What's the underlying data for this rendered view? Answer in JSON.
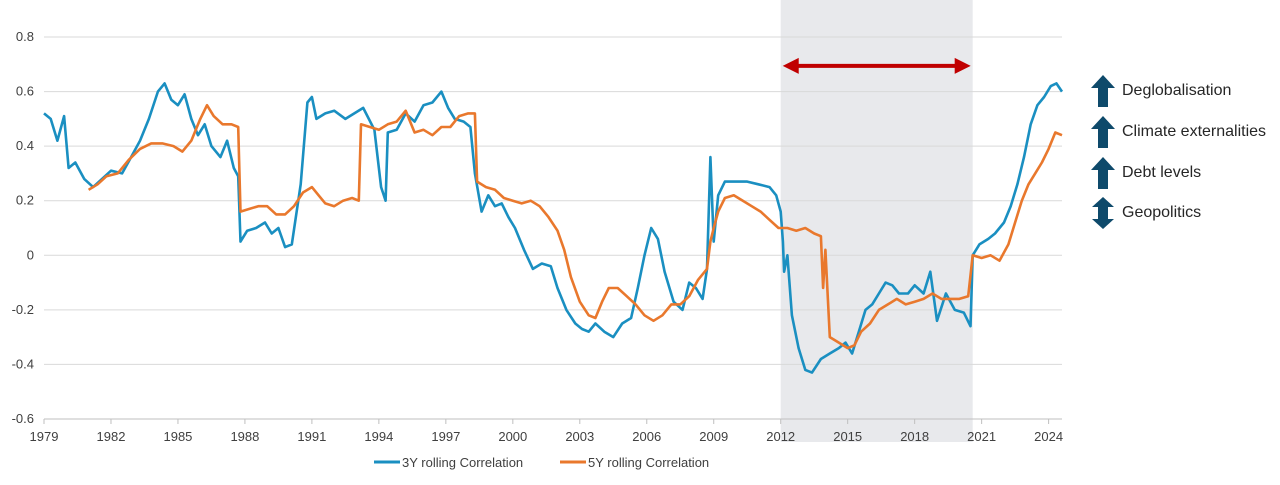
{
  "chart_data": {
    "type": "line",
    "title": "",
    "xlabel": "",
    "ylabel": "",
    "xlim": [
      1979.0,
      2024.6
    ],
    "ylim": [
      -0.6,
      0.8
    ],
    "yticks": [
      -0.6,
      -0.4,
      -0.2,
      0,
      0.2,
      0.4,
      0.6,
      0.8
    ],
    "ytick_labels": [
      "-0.6",
      "-0.4",
      "-0.2",
      "0",
      "0.2",
      "0.4",
      "0.6",
      "0.8"
    ],
    "xticks": [
      1979,
      1982,
      1985,
      1988,
      1991,
      1994,
      1997,
      2000,
      2003,
      2006,
      2009,
      2012,
      2015,
      2018,
      2021,
      2024
    ],
    "xtick_labels": [
      "1979",
      "1982",
      "1985",
      "1988",
      "1991",
      "1994",
      "1997",
      "2000",
      "2003",
      "2006",
      "2009",
      "2012",
      "2015",
      "2018",
      "2021",
      "2024"
    ],
    "grid": "horizontal",
    "legend_position": "bottom",
    "shaded_region": {
      "x": [
        2012.0,
        2020.6
      ],
      "color": "#e8e9ec"
    },
    "arrow": {
      "x": [
        2012.0,
        2020.6
      ],
      "y": 0.72,
      "color": "#c00000",
      "style": "double-headed"
    },
    "series": [
      {
        "name": "3Y rolling Correlation",
        "color": "#1a8fc1",
        "points": [
          [
            1979.0,
            0.52
          ],
          [
            1979.3,
            0.5
          ],
          [
            1979.6,
            0.42
          ],
          [
            1979.9,
            0.51
          ],
          [
            1980.1,
            0.32
          ],
          [
            1980.4,
            0.34
          ],
          [
            1980.8,
            0.28
          ],
          [
            1981.2,
            0.25
          ],
          [
            1981.6,
            0.28
          ],
          [
            1982.0,
            0.31
          ],
          [
            1982.5,
            0.3
          ],
          [
            1982.9,
            0.36
          ],
          [
            1983.3,
            0.42
          ],
          [
            1983.7,
            0.5
          ],
          [
            1984.1,
            0.6
          ],
          [
            1984.4,
            0.63
          ],
          [
            1984.7,
            0.57
          ],
          [
            1985.0,
            0.55
          ],
          [
            1985.3,
            0.59
          ],
          [
            1985.6,
            0.5
          ],
          [
            1985.9,
            0.44
          ],
          [
            1986.2,
            0.48
          ],
          [
            1986.5,
            0.4
          ],
          [
            1986.9,
            0.36
          ],
          [
            1987.2,
            0.42
          ],
          [
            1987.5,
            0.32
          ],
          [
            1987.7,
            0.29
          ],
          [
            1987.8,
            0.05
          ],
          [
            1988.1,
            0.09
          ],
          [
            1988.5,
            0.1
          ],
          [
            1988.9,
            0.12
          ],
          [
            1989.2,
            0.08
          ],
          [
            1989.5,
            0.1
          ],
          [
            1989.8,
            0.03
          ],
          [
            1990.1,
            0.04
          ],
          [
            1990.5,
            0.26
          ],
          [
            1990.8,
            0.56
          ],
          [
            1991.0,
            0.58
          ],
          [
            1991.2,
            0.5
          ],
          [
            1991.6,
            0.52
          ],
          [
            1992.0,
            0.53
          ],
          [
            1992.5,
            0.5
          ],
          [
            1992.9,
            0.52
          ],
          [
            1993.3,
            0.54
          ],
          [
            1993.8,
            0.46
          ],
          [
            1994.1,
            0.25
          ],
          [
            1994.3,
            0.2
          ],
          [
            1994.4,
            0.45
          ],
          [
            1994.8,
            0.46
          ],
          [
            1995.2,
            0.52
          ],
          [
            1995.6,
            0.49
          ],
          [
            1996.0,
            0.55
          ],
          [
            1996.4,
            0.56
          ],
          [
            1996.8,
            0.6
          ],
          [
            1997.1,
            0.54
          ],
          [
            1997.4,
            0.5
          ],
          [
            1997.8,
            0.49
          ],
          [
            1998.1,
            0.47
          ],
          [
            1998.3,
            0.3
          ],
          [
            1998.6,
            0.16
          ],
          [
            1998.9,
            0.22
          ],
          [
            1999.2,
            0.18
          ],
          [
            1999.5,
            0.19
          ],
          [
            1999.8,
            0.14
          ],
          [
            2000.1,
            0.1
          ],
          [
            2000.5,
            0.02
          ],
          [
            2000.9,
            -0.05
          ],
          [
            2001.3,
            -0.03
          ],
          [
            2001.7,
            -0.04
          ],
          [
            2002.0,
            -0.12
          ],
          [
            2002.4,
            -0.2
          ],
          [
            2002.8,
            -0.25
          ],
          [
            2003.1,
            -0.27
          ],
          [
            2003.4,
            -0.28
          ],
          [
            2003.7,
            -0.25
          ],
          [
            2004.1,
            -0.28
          ],
          [
            2004.5,
            -0.3
          ],
          [
            2004.9,
            -0.25
          ],
          [
            2005.3,
            -0.23
          ],
          [
            2005.6,
            -0.12
          ],
          [
            2005.9,
            0.0
          ],
          [
            2006.2,
            0.1
          ],
          [
            2006.5,
            0.06
          ],
          [
            2006.8,
            -0.06
          ],
          [
            2007.2,
            -0.17
          ],
          [
            2007.6,
            -0.2
          ],
          [
            2007.9,
            -0.1
          ],
          [
            2008.2,
            -0.12
          ],
          [
            2008.5,
            -0.16
          ],
          [
            2008.7,
            -0.05
          ],
          [
            2008.85,
            0.36
          ],
          [
            2009.0,
            0.05
          ],
          [
            2009.2,
            0.22
          ],
          [
            2009.5,
            0.27
          ],
          [
            2010.0,
            0.27
          ],
          [
            2010.5,
            0.27
          ],
          [
            2011.0,
            0.26
          ],
          [
            2011.5,
            0.25
          ],
          [
            2011.8,
            0.22
          ],
          [
            2012.0,
            0.16
          ],
          [
            2012.1,
            0.05
          ],
          [
            2012.15,
            -0.06
          ],
          [
            2012.3,
            0.0
          ],
          [
            2012.5,
            -0.22
          ],
          [
            2012.8,
            -0.34
          ],
          [
            2013.1,
            -0.42
          ],
          [
            2013.4,
            -0.43
          ],
          [
            2013.8,
            -0.38
          ],
          [
            2014.2,
            -0.36
          ],
          [
            2014.6,
            -0.34
          ],
          [
            2014.9,
            -0.32
          ],
          [
            2015.2,
            -0.36
          ],
          [
            2015.5,
            -0.28
          ],
          [
            2015.8,
            -0.2
          ],
          [
            2016.1,
            -0.18
          ],
          [
            2016.4,
            -0.14
          ],
          [
            2016.7,
            -0.1
          ],
          [
            2017.0,
            -0.11
          ],
          [
            2017.3,
            -0.14
          ],
          [
            2017.7,
            -0.14
          ],
          [
            2018.0,
            -0.11
          ],
          [
            2018.4,
            -0.14
          ],
          [
            2018.7,
            -0.06
          ],
          [
            2019.0,
            -0.24
          ],
          [
            2019.4,
            -0.14
          ],
          [
            2019.8,
            -0.2
          ],
          [
            2020.2,
            -0.21
          ],
          [
            2020.5,
            -0.26
          ],
          [
            2020.6,
            0.0
          ],
          [
            2020.9,
            0.04
          ],
          [
            2021.3,
            0.06
          ],
          [
            2021.6,
            0.08
          ],
          [
            2022.0,
            0.12
          ],
          [
            2022.3,
            0.18
          ],
          [
            2022.6,
            0.26
          ],
          [
            2022.9,
            0.36
          ],
          [
            2023.2,
            0.48
          ],
          [
            2023.5,
            0.55
          ],
          [
            2023.8,
            0.58
          ],
          [
            2024.1,
            0.62
          ],
          [
            2024.35,
            0.63
          ],
          [
            2024.6,
            0.6
          ]
        ]
      },
      {
        "name": "5Y rolling Correlation",
        "color": "#e9782d",
        "points": [
          [
            1981.0,
            0.24
          ],
          [
            1981.4,
            0.26
          ],
          [
            1981.8,
            0.29
          ],
          [
            1982.3,
            0.3
          ],
          [
            1982.8,
            0.35
          ],
          [
            1983.3,
            0.39
          ],
          [
            1983.8,
            0.41
          ],
          [
            1984.3,
            0.41
          ],
          [
            1984.8,
            0.4
          ],
          [
            1985.2,
            0.38
          ],
          [
            1985.6,
            0.42
          ],
          [
            1986.0,
            0.5
          ],
          [
            1986.3,
            0.55
          ],
          [
            1986.6,
            0.51
          ],
          [
            1987.0,
            0.48
          ],
          [
            1987.4,
            0.48
          ],
          [
            1987.7,
            0.47
          ],
          [
            1987.8,
            0.16
          ],
          [
            1988.2,
            0.17
          ],
          [
            1988.6,
            0.18
          ],
          [
            1989.0,
            0.18
          ],
          [
            1989.4,
            0.15
          ],
          [
            1989.8,
            0.15
          ],
          [
            1990.2,
            0.18
          ],
          [
            1990.6,
            0.23
          ],
          [
            1991.0,
            0.25
          ],
          [
            1991.3,
            0.22
          ],
          [
            1991.6,
            0.19
          ],
          [
            1992.0,
            0.18
          ],
          [
            1992.4,
            0.2
          ],
          [
            1992.8,
            0.21
          ],
          [
            1993.1,
            0.2
          ],
          [
            1993.2,
            0.48
          ],
          [
            1993.6,
            0.47
          ],
          [
            1994.0,
            0.46
          ],
          [
            1994.4,
            0.48
          ],
          [
            1994.8,
            0.49
          ],
          [
            1995.2,
            0.53
          ],
          [
            1995.6,
            0.45
          ],
          [
            1996.0,
            0.46
          ],
          [
            1996.4,
            0.44
          ],
          [
            1996.8,
            0.47
          ],
          [
            1997.2,
            0.47
          ],
          [
            1997.6,
            0.51
          ],
          [
            1998.0,
            0.52
          ],
          [
            1998.3,
            0.52
          ],
          [
            1998.4,
            0.27
          ],
          [
            1998.8,
            0.25
          ],
          [
            1999.2,
            0.24
          ],
          [
            1999.6,
            0.21
          ],
          [
            2000.0,
            0.2
          ],
          [
            2000.4,
            0.19
          ],
          [
            2000.8,
            0.2
          ],
          [
            2001.2,
            0.18
          ],
          [
            2001.6,
            0.14
          ],
          [
            2002.0,
            0.09
          ],
          [
            2002.3,
            0.02
          ],
          [
            2002.6,
            -0.08
          ],
          [
            2003.0,
            -0.17
          ],
          [
            2003.4,
            -0.22
          ],
          [
            2003.7,
            -0.23
          ],
          [
            2004.0,
            -0.17
          ],
          [
            2004.3,
            -0.12
          ],
          [
            2004.7,
            -0.12
          ],
          [
            2005.1,
            -0.15
          ],
          [
            2005.5,
            -0.18
          ],
          [
            2005.9,
            -0.22
          ],
          [
            2006.3,
            -0.24
          ],
          [
            2006.7,
            -0.22
          ],
          [
            2007.1,
            -0.18
          ],
          [
            2007.5,
            -0.18
          ],
          [
            2007.9,
            -0.15
          ],
          [
            2008.3,
            -0.09
          ],
          [
            2008.7,
            -0.05
          ],
          [
            2008.85,
            0.05
          ],
          [
            2009.0,
            0.1
          ],
          [
            2009.2,
            0.16
          ],
          [
            2009.5,
            0.21
          ],
          [
            2009.9,
            0.22
          ],
          [
            2010.3,
            0.2
          ],
          [
            2010.7,
            0.18
          ],
          [
            2011.1,
            0.16
          ],
          [
            2011.5,
            0.13
          ],
          [
            2011.9,
            0.1
          ],
          [
            2012.3,
            0.1
          ],
          [
            2012.7,
            0.09
          ],
          [
            2013.1,
            0.1
          ],
          [
            2013.5,
            0.08
          ],
          [
            2013.8,
            0.07
          ],
          [
            2013.9,
            -0.12
          ],
          [
            2014.0,
            0.02
          ],
          [
            2014.2,
            -0.3
          ],
          [
            2014.6,
            -0.32
          ],
          [
            2015.0,
            -0.34
          ],
          [
            2015.3,
            -0.33
          ],
          [
            2015.6,
            -0.28
          ],
          [
            2016.0,
            -0.25
          ],
          [
            2016.4,
            -0.2
          ],
          [
            2016.8,
            -0.18
          ],
          [
            2017.2,
            -0.16
          ],
          [
            2017.6,
            -0.18
          ],
          [
            2018.0,
            -0.17
          ],
          [
            2018.4,
            -0.16
          ],
          [
            2018.8,
            -0.14
          ],
          [
            2019.2,
            -0.16
          ],
          [
            2019.6,
            -0.16
          ],
          [
            2020.0,
            -0.16
          ],
          [
            2020.4,
            -0.15
          ],
          [
            2020.6,
            0.0
          ],
          [
            2021.0,
            -0.01
          ],
          [
            2021.4,
            0.0
          ],
          [
            2021.8,
            -0.02
          ],
          [
            2022.2,
            0.04
          ],
          [
            2022.5,
            0.12
          ],
          [
            2022.8,
            0.2
          ],
          [
            2023.1,
            0.26
          ],
          [
            2023.4,
            0.3
          ],
          [
            2023.7,
            0.34
          ],
          [
            2024.0,
            0.39
          ],
          [
            2024.3,
            0.45
          ],
          [
            2024.6,
            0.44
          ]
        ]
      }
    ]
  },
  "side_panel": {
    "items": [
      {
        "label": "Deglobalisation",
        "icon": "arrow-up-icon"
      },
      {
        "label": "Climate externalities",
        "icon": "arrow-up-icon"
      },
      {
        "label": "Debt levels",
        "icon": "arrow-up-icon"
      },
      {
        "label": "Geopolitics",
        "icon": "arrow-up-down-icon"
      }
    ],
    "icon_color": "#0e4a6b"
  }
}
